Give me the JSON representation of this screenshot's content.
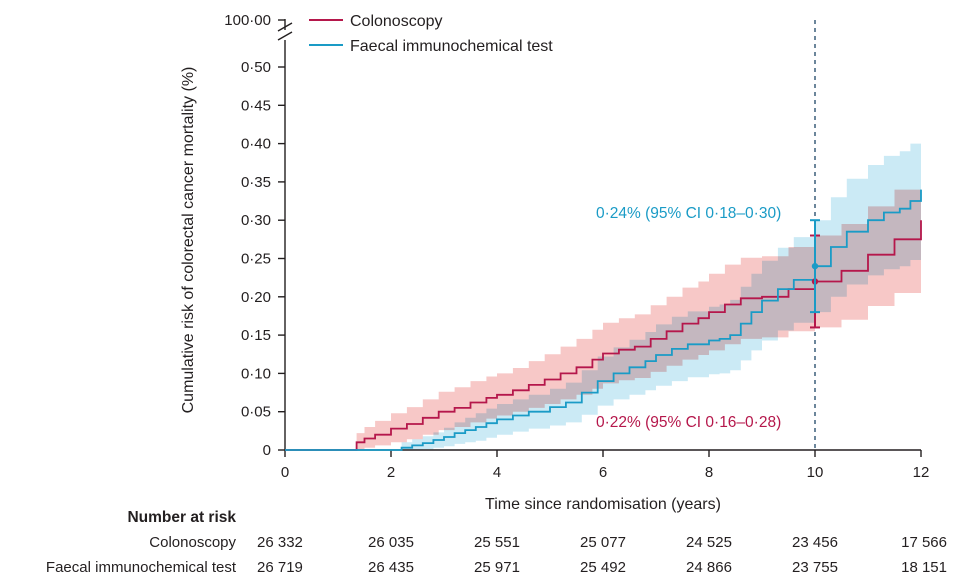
{
  "chart_data": {
    "type": "line",
    "subtype": "cumulative-incidence-step",
    "xlabel": "Time since randomisation (years)",
    "ylabel": "Cumulative risk of colorectal cancer mortality (%)",
    "xlim": [
      0,
      12
    ],
    "ylim": [
      0,
      0.5
    ],
    "x_ticks": [
      0,
      2,
      4,
      6,
      8,
      10,
      12
    ],
    "x_tick_labels": [
      "0",
      "2",
      "4",
      "6",
      "8",
      "10",
      "12"
    ],
    "y_ticks": [
      0,
      0.05,
      0.1,
      0.15,
      0.2,
      0.25,
      0.3,
      0.35,
      0.4,
      0.45,
      0.5
    ],
    "y_tick_labels": [
      "0",
      "0·05",
      "0·10",
      "0·15",
      "0·20",
      "0·25",
      "0·30",
      "0·35",
      "0·40",
      "0·45",
      "0·50"
    ],
    "y_break_label": "100·00",
    "reference_line_x": 10,
    "series": [
      {
        "name": "Colonoscopy",
        "color": "#b5174b",
        "band_color": "#f4b6b4",
        "x": [
          0,
          1.35,
          1.5,
          1.7,
          2.0,
          2.3,
          2.6,
          2.9,
          3.2,
          3.5,
          3.8,
          4.0,
          4.3,
          4.6,
          4.9,
          5.2,
          5.5,
          5.8,
          6.0,
          6.3,
          6.6,
          6.9,
          7.2,
          7.5,
          7.8,
          8.0,
          8.3,
          8.6,
          9.0,
          9.5,
          10.0,
          10.5,
          11.0,
          11.5,
          12.0
        ],
        "values": [
          0,
          0.01,
          0.015,
          0.02,
          0.028,
          0.034,
          0.042,
          0.05,
          0.055,
          0.062,
          0.068,
          0.072,
          0.078,
          0.085,
          0.092,
          0.1,
          0.108,
          0.118,
          0.126,
          0.131,
          0.135,
          0.145,
          0.155,
          0.165,
          0.172,
          0.18,
          0.19,
          0.198,
          0.2,
          0.21,
          0.22,
          0.234,
          0.255,
          0.275,
          0.3
        ],
        "lower": [
          0,
          0.001,
          0.003,
          0.006,
          0.01,
          0.014,
          0.02,
          0.026,
          0.03,
          0.036,
          0.041,
          0.045,
          0.05,
          0.055,
          0.06,
          0.066,
          0.072,
          0.08,
          0.087,
          0.091,
          0.094,
          0.102,
          0.11,
          0.118,
          0.124,
          0.13,
          0.138,
          0.145,
          0.147,
          0.155,
          0.16,
          0.17,
          0.188,
          0.205,
          0.23
        ],
        "upper": [
          0,
          0.022,
          0.03,
          0.038,
          0.048,
          0.056,
          0.066,
          0.076,
          0.082,
          0.09,
          0.096,
          0.1,
          0.107,
          0.116,
          0.125,
          0.135,
          0.145,
          0.157,
          0.166,
          0.172,
          0.177,
          0.189,
          0.2,
          0.212,
          0.22,
          0.23,
          0.242,
          0.251,
          0.253,
          0.265,
          0.28,
          0.295,
          0.318,
          0.34,
          0.37
        ],
        "estimate_at_10": 0.22,
        "ci_at_10": [
          0.16,
          0.28
        ],
        "annotation": "0·22% (95% CI 0·16–0·28)",
        "at_risk": [
          "26 332",
          "26 035",
          "25 551",
          "25 077",
          "24 525",
          "23 456",
          "17 566"
        ]
      },
      {
        "name": "Faecal immunochemical test",
        "color": "#1a9bc6",
        "band_color": "#a8dcee",
        "x": [
          0,
          2.2,
          2.4,
          2.6,
          2.8,
          3.0,
          3.2,
          3.4,
          3.6,
          3.8,
          4.0,
          4.3,
          4.6,
          5.0,
          5.3,
          5.6,
          5.9,
          6.2,
          6.5,
          6.8,
          7.0,
          7.3,
          7.6,
          8.0,
          8.2,
          8.4,
          8.6,
          8.8,
          9.0,
          9.3,
          9.6,
          10.0,
          10.3,
          10.6,
          11.0,
          11.3,
          11.6,
          11.8,
          12.0
        ],
        "values": [
          0,
          0.003,
          0.006,
          0.009,
          0.013,
          0.017,
          0.022,
          0.026,
          0.03,
          0.035,
          0.04,
          0.045,
          0.05,
          0.056,
          0.062,
          0.075,
          0.09,
          0.1,
          0.108,
          0.116,
          0.124,
          0.132,
          0.138,
          0.143,
          0.145,
          0.15,
          0.165,
          0.18,
          0.195,
          0.21,
          0.222,
          0.24,
          0.265,
          0.285,
          0.3,
          0.31,
          0.315,
          0.325,
          0.34
        ],
        "lower": [
          0,
          0,
          0,
          0.001,
          0.003,
          0.005,
          0.008,
          0.01,
          0.012,
          0.016,
          0.02,
          0.024,
          0.028,
          0.032,
          0.036,
          0.046,
          0.058,
          0.066,
          0.072,
          0.078,
          0.084,
          0.09,
          0.095,
          0.099,
          0.1,
          0.104,
          0.117,
          0.13,
          0.143,
          0.156,
          0.166,
          0.18,
          0.2,
          0.216,
          0.228,
          0.236,
          0.24,
          0.248,
          0.26
        ],
        "upper": [
          0,
          0.01,
          0.014,
          0.018,
          0.023,
          0.029,
          0.036,
          0.042,
          0.048,
          0.054,
          0.06,
          0.066,
          0.072,
          0.08,
          0.088,
          0.104,
          0.122,
          0.134,
          0.144,
          0.154,
          0.164,
          0.174,
          0.181,
          0.187,
          0.19,
          0.196,
          0.213,
          0.23,
          0.247,
          0.264,
          0.278,
          0.3,
          0.33,
          0.354,
          0.372,
          0.384,
          0.39,
          0.4,
          0.41
        ],
        "estimate_at_10": 0.24,
        "ci_at_10": [
          0.18,
          0.3
        ],
        "annotation": "0·24% (95% CI 0·18–0·30)",
        "at_risk": [
          "26 719",
          "26 435",
          "25 971",
          "25 492",
          "24 866",
          "23 755",
          "18 151"
        ]
      }
    ],
    "number_at_risk": {
      "title": "Number at risk",
      "times": [
        0,
        2,
        4,
        6,
        8,
        10,
        12
      ]
    }
  }
}
